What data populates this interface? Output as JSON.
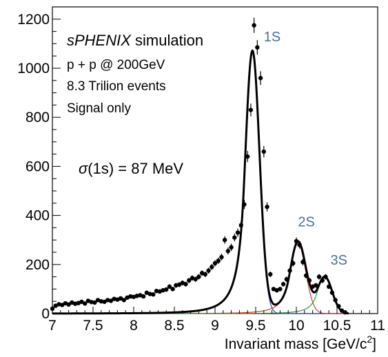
{
  "chart_data": {
    "type": "scatter",
    "title": "",
    "xlabel": "Invariant mass [GeV/c",
    "xlabel_sup": "2",
    "xlabel_close": "]",
    "ylabel": "",
    "xlim": [
      7,
      11
    ],
    "ylim": [
      0,
      1250
    ],
    "x_ticks": [
      "7",
      "7.5",
      "8",
      "8.5",
      "9",
      "9.5",
      "10",
      "10.5",
      "11"
    ],
    "y_ticks": [
      "0",
      "200",
      "400",
      "600",
      "800",
      "1000",
      "1200"
    ],
    "grid": false,
    "annotations": {
      "line1_a": "sPHENIX",
      "line1_b": " simulation",
      "line2": "p + p @ 200GeV",
      "line3": "8.3 Trilion events",
      "line4": "Signal only",
      "sigma_sym": "σ",
      "sigma_text": "(1s) = 87 MeV"
    },
    "peak_labels": [
      {
        "text": "1S",
        "x": 9.6,
        "y": 1110
      },
      {
        "text": "2S",
        "x": 10.02,
        "y": 355
      },
      {
        "text": "3S",
        "x": 10.42,
        "y": 200
      }
    ],
    "series": [
      {
        "name": "",
        "role": "data",
        "color": "#000000",
        "x": [
          7.0,
          7.04,
          7.08,
          7.12,
          7.16,
          7.2,
          7.24,
          7.28,
          7.32,
          7.36,
          7.4,
          7.44,
          7.48,
          7.52,
          7.56,
          7.6,
          7.64,
          7.68,
          7.72,
          7.76,
          7.8,
          7.84,
          7.88,
          7.92,
          7.96,
          8.0,
          8.04,
          8.08,
          8.12,
          8.16,
          8.2,
          8.24,
          8.28,
          8.32,
          8.36,
          8.4,
          8.44,
          8.48,
          8.52,
          8.56,
          8.6,
          8.64,
          8.68,
          8.72,
          8.76,
          8.8,
          8.84,
          8.88,
          8.92,
          8.96,
          9.0,
          9.04,
          9.08,
          9.12,
          9.16,
          9.2,
          9.24,
          9.28,
          9.32,
          9.36,
          9.4,
          9.44,
          9.48,
          9.52,
          9.56,
          9.6,
          9.64,
          9.68,
          9.72,
          9.76,
          9.8,
          9.84,
          9.88,
          9.92,
          9.96,
          10.0,
          10.04,
          10.08,
          10.12,
          10.16,
          10.2,
          10.24,
          10.28,
          10.32,
          10.36,
          10.4,
          10.44,
          10.48,
          10.52,
          10.56,
          10.6
        ],
        "y": [
          20,
          32,
          38,
          35,
          42,
          37,
          45,
          40,
          43,
          48,
          41,
          52,
          47,
          45,
          55,
          50,
          48,
          55,
          52,
          60,
          57,
          62,
          55,
          65,
          70,
          68,
          72,
          75,
          70,
          85,
          80,
          78,
          92,
          90,
          95,
          98,
          110,
          100,
          115,
          118,
          125,
          120,
          135,
          145,
          140,
          150,
          165,
          160,
          175,
          190,
          205,
          215,
          230,
          300,
          255,
          270,
          310,
          330,
          360,
          445,
          640,
          830,
          1175,
          1085,
          960,
          660,
          435,
          160,
          100,
          95,
          100,
          120,
          140,
          175,
          205,
          295,
          280,
          210,
          155,
          135,
          110,
          115,
          150,
          135,
          150,
          110,
          85,
          55,
          30,
          12,
          5
        ]
      },
      {
        "name": "",
        "role": "total-fit",
        "color": "#000000"
      },
      {
        "name": "",
        "role": "1S-fit",
        "color": "#2f3fd0"
      },
      {
        "name": "",
        "role": "2S-fit",
        "color": "#d23a2a"
      },
      {
        "name": "",
        "role": "3S-fit",
        "color": "#2e9a2e"
      }
    ]
  }
}
